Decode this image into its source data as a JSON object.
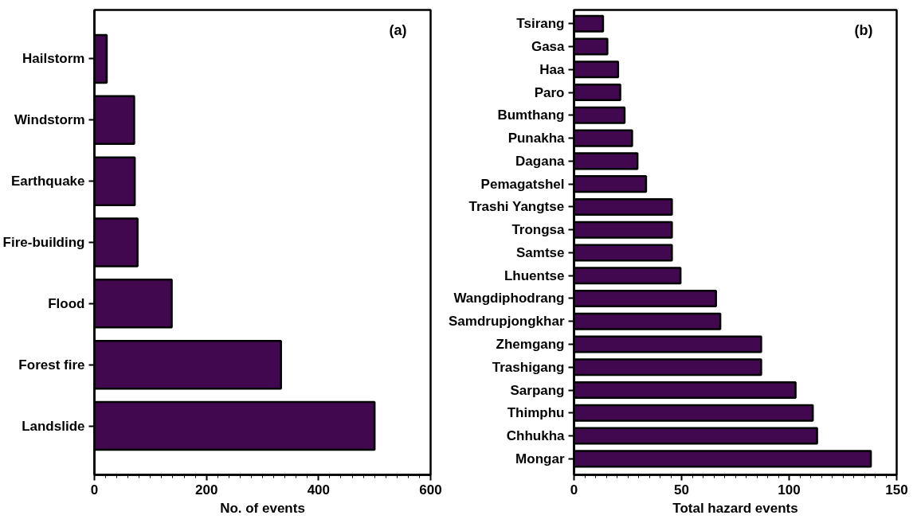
{
  "chart_data": [
    {
      "type": "bar",
      "orientation": "horizontal",
      "categories": [
        "Hailstorm",
        "Windstorm",
        "Earthquake",
        "Fire-building",
        "Flood",
        "Forest fire",
        "Landslide"
      ],
      "values": [
        22,
        71,
        72,
        77,
        138,
        333,
        500
      ],
      "color": "#42084f",
      "xlabel": "No. of events",
      "xlim": [
        0,
        600
      ],
      "xticks": [
        0,
        200,
        400,
        600
      ],
      "annotations": [
        "(a)"
      ],
      "grid": false
    },
    {
      "type": "bar",
      "orientation": "horizontal",
      "categories": [
        "Tsirang",
        "Gasa",
        "Haa",
        "Paro",
        "Bumthang",
        "Punakha",
        "Dagana",
        "Pemagatshel",
        "Trashi Yangtse",
        "Trongsa",
        "Samtse",
        "Lhuentse",
        "Wangdiphodrang",
        "Samdrupjongkhar",
        "Zhemgang",
        "Trashigang",
        "Sarpang",
        "Thimphu",
        "Chhukha",
        "Mongar"
      ],
      "values": [
        13.5,
        15.5,
        20.5,
        21.5,
        23.5,
        27,
        29.5,
        33.5,
        45.5,
        45.5,
        45.5,
        49.5,
        66,
        68,
        87,
        87,
        103,
        111,
        113,
        138
      ],
      "color": "#42084f",
      "xlabel": "Total hazard events",
      "xlim": [
        0,
        150
      ],
      "xticks": [
        0,
        50,
        100,
        150
      ],
      "annotations": [
        "(b)"
      ],
      "grid": false
    }
  ]
}
